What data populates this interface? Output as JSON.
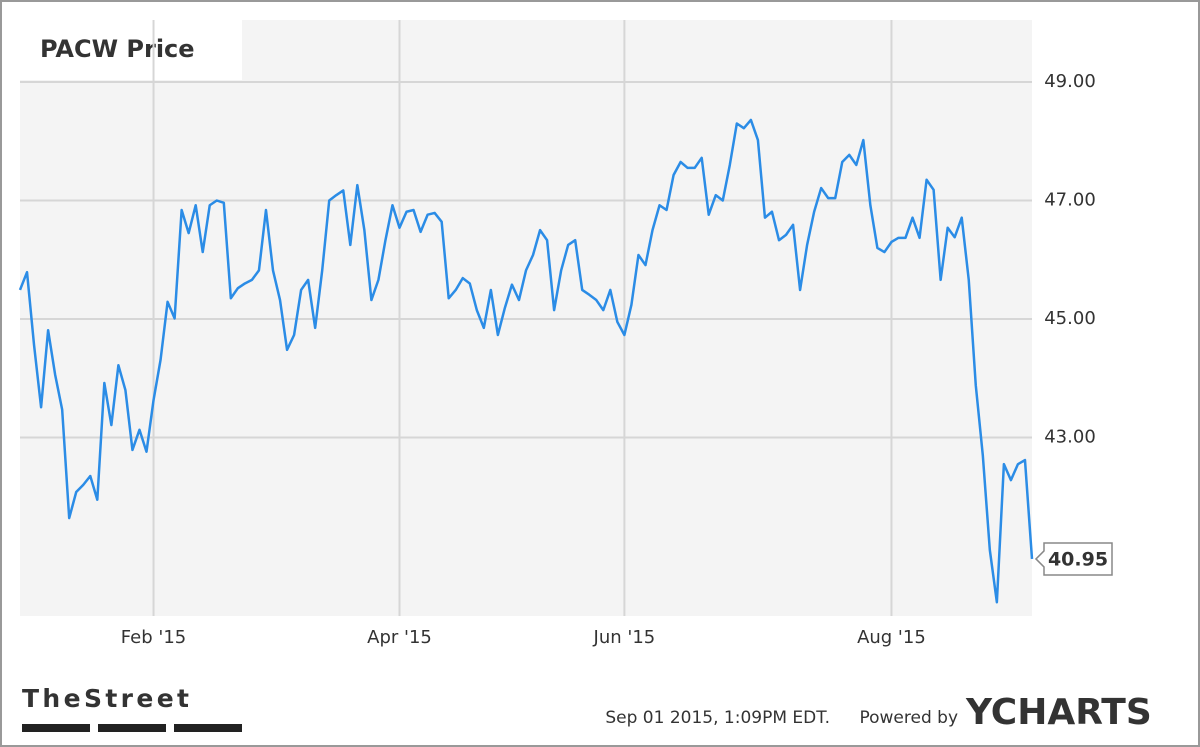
{
  "chart_data": {
    "type": "line",
    "title": "PACW Price",
    "series": [
      {
        "name": "PACW",
        "color": "#2b8ce6",
        "values": [
          45.49,
          45.79,
          44.56,
          43.51,
          44.81,
          44.06,
          43.47,
          41.64,
          42.08,
          42.2,
          42.35,
          41.95,
          43.92,
          43.21,
          44.22,
          43.8,
          42.79,
          43.13,
          42.76,
          43.63,
          44.31,
          45.29,
          45.01,
          46.84,
          46.45,
          46.92,
          46.13,
          46.92,
          47.0,
          46.96,
          45.35,
          45.52,
          45.6,
          45.66,
          45.82,
          46.84,
          45.82,
          45.32,
          44.48,
          44.73,
          45.49,
          45.66,
          44.85,
          45.82,
          47.0,
          47.09,
          47.17,
          46.25,
          47.26,
          46.5,
          45.32,
          45.66,
          46.33,
          46.92,
          46.54,
          46.81,
          46.84,
          46.47,
          46.76,
          46.79,
          46.64,
          45.35,
          45.49,
          45.69,
          45.6,
          45.15,
          44.85,
          45.49,
          44.73,
          45.19,
          45.58,
          45.32,
          45.82,
          46.08,
          46.5,
          46.33,
          45.15,
          45.82,
          46.25,
          46.33,
          45.49,
          45.41,
          45.32,
          45.15,
          45.49,
          44.95,
          44.73,
          45.24,
          46.08,
          45.91,
          46.5,
          46.92,
          46.84,
          47.43,
          47.65,
          47.55,
          47.55,
          47.72,
          46.76,
          47.09,
          47.0,
          47.6,
          48.3,
          48.22,
          48.36,
          48.02,
          46.71,
          46.81,
          46.33,
          46.42,
          46.59,
          45.49,
          46.25,
          46.81,
          47.21,
          47.04,
          47.04,
          47.65,
          47.77,
          47.6,
          48.02,
          46.92,
          46.2,
          46.13,
          46.3,
          46.37,
          46.37,
          46.71,
          46.37,
          47.35,
          47.18,
          45.66,
          46.54,
          46.38,
          46.71,
          45.66,
          43.88,
          42.7,
          41.1,
          40.22,
          42.55,
          42.28,
          42.55,
          42.62,
          40.95
        ]
      }
    ],
    "xlim": [
      0,
      144
    ],
    "xticks": [
      {
        "value": 19,
        "label": "Feb '15"
      },
      {
        "value": 54,
        "label": "Apr '15"
      },
      {
        "value": 86,
        "label": "Jun '15"
      },
      {
        "value": 124,
        "label": "Aug '15"
      }
    ],
    "ylim": [
      40,
      50
    ],
    "yticks": [
      {
        "value": 43,
        "label": "43.00"
      },
      {
        "value": 45,
        "label": "45.00"
      },
      {
        "value": 47,
        "label": "47.00"
      },
      {
        "value": 49,
        "label": "49.00"
      }
    ],
    "grid": true
  },
  "footer": {
    "source": "TheStreet",
    "timestamp": "Sep 01 2015, 1:09PM EDT.",
    "powered_by": "Powered by",
    "brand": "YCHARTS"
  }
}
